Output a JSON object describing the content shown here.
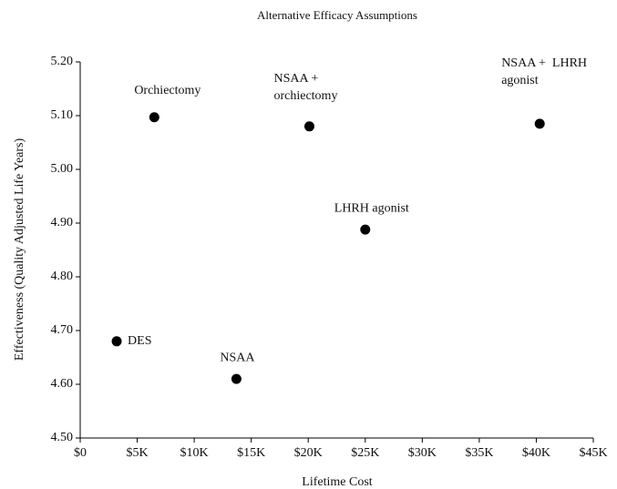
{
  "chart_data": {
    "type": "scatter",
    "title": "Alternative Efficacy Assumptions",
    "xlabel": "Lifetime Cost",
    "ylabel": "Effectiveness (Quality Adjusted Life Years)",
    "color": "#000000",
    "x": [
      3200,
      6500,
      13700,
      20100,
      25000,
      40300
    ],
    "values": [
      4.68,
      5.097,
      4.61,
      5.08,
      4.888,
      5.085
    ],
    "labels": [
      [
        "DES"
      ],
      [
        "Orchiectomy"
      ],
      [
        "NSAA"
      ],
      [
        "NSAA +",
        "orchiectomy"
      ],
      [
        "LHRH agonist"
      ],
      [
        "NSAA +  LHRH",
        "agonist"
      ]
    ],
    "xlim": [
      0,
      45000
    ],
    "xticks": [
      {
        "value": 0,
        "label": "$0"
      },
      {
        "value": 5000,
        "label": "$5K"
      },
      {
        "value": 10000,
        "label": "$10K"
      },
      {
        "value": 15000,
        "label": "$15K"
      },
      {
        "value": 20000,
        "label": "$20K"
      },
      {
        "value": 25000,
        "label": "$25K"
      },
      {
        "value": 30000,
        "label": "$30K"
      },
      {
        "value": 35000,
        "label": "$35K"
      },
      {
        "value": 40000,
        "label": "$40K"
      },
      {
        "value": 45000,
        "label": "$45K"
      }
    ],
    "ylim": [
      4.5,
      5.2
    ],
    "yticks": [
      {
        "value": 4.5,
        "label": "4.50"
      },
      {
        "value": 4.6,
        "label": "4.60"
      },
      {
        "value": 4.7,
        "label": "4.70"
      },
      {
        "value": 4.8,
        "label": "4.80"
      },
      {
        "value": 4.9,
        "label": "4.90"
      },
      {
        "value": 5.0,
        "label": "5.00"
      },
      {
        "value": 5.1,
        "label": "5.10"
      },
      {
        "value": 5.2,
        "label": "5.20"
      }
    ]
  }
}
